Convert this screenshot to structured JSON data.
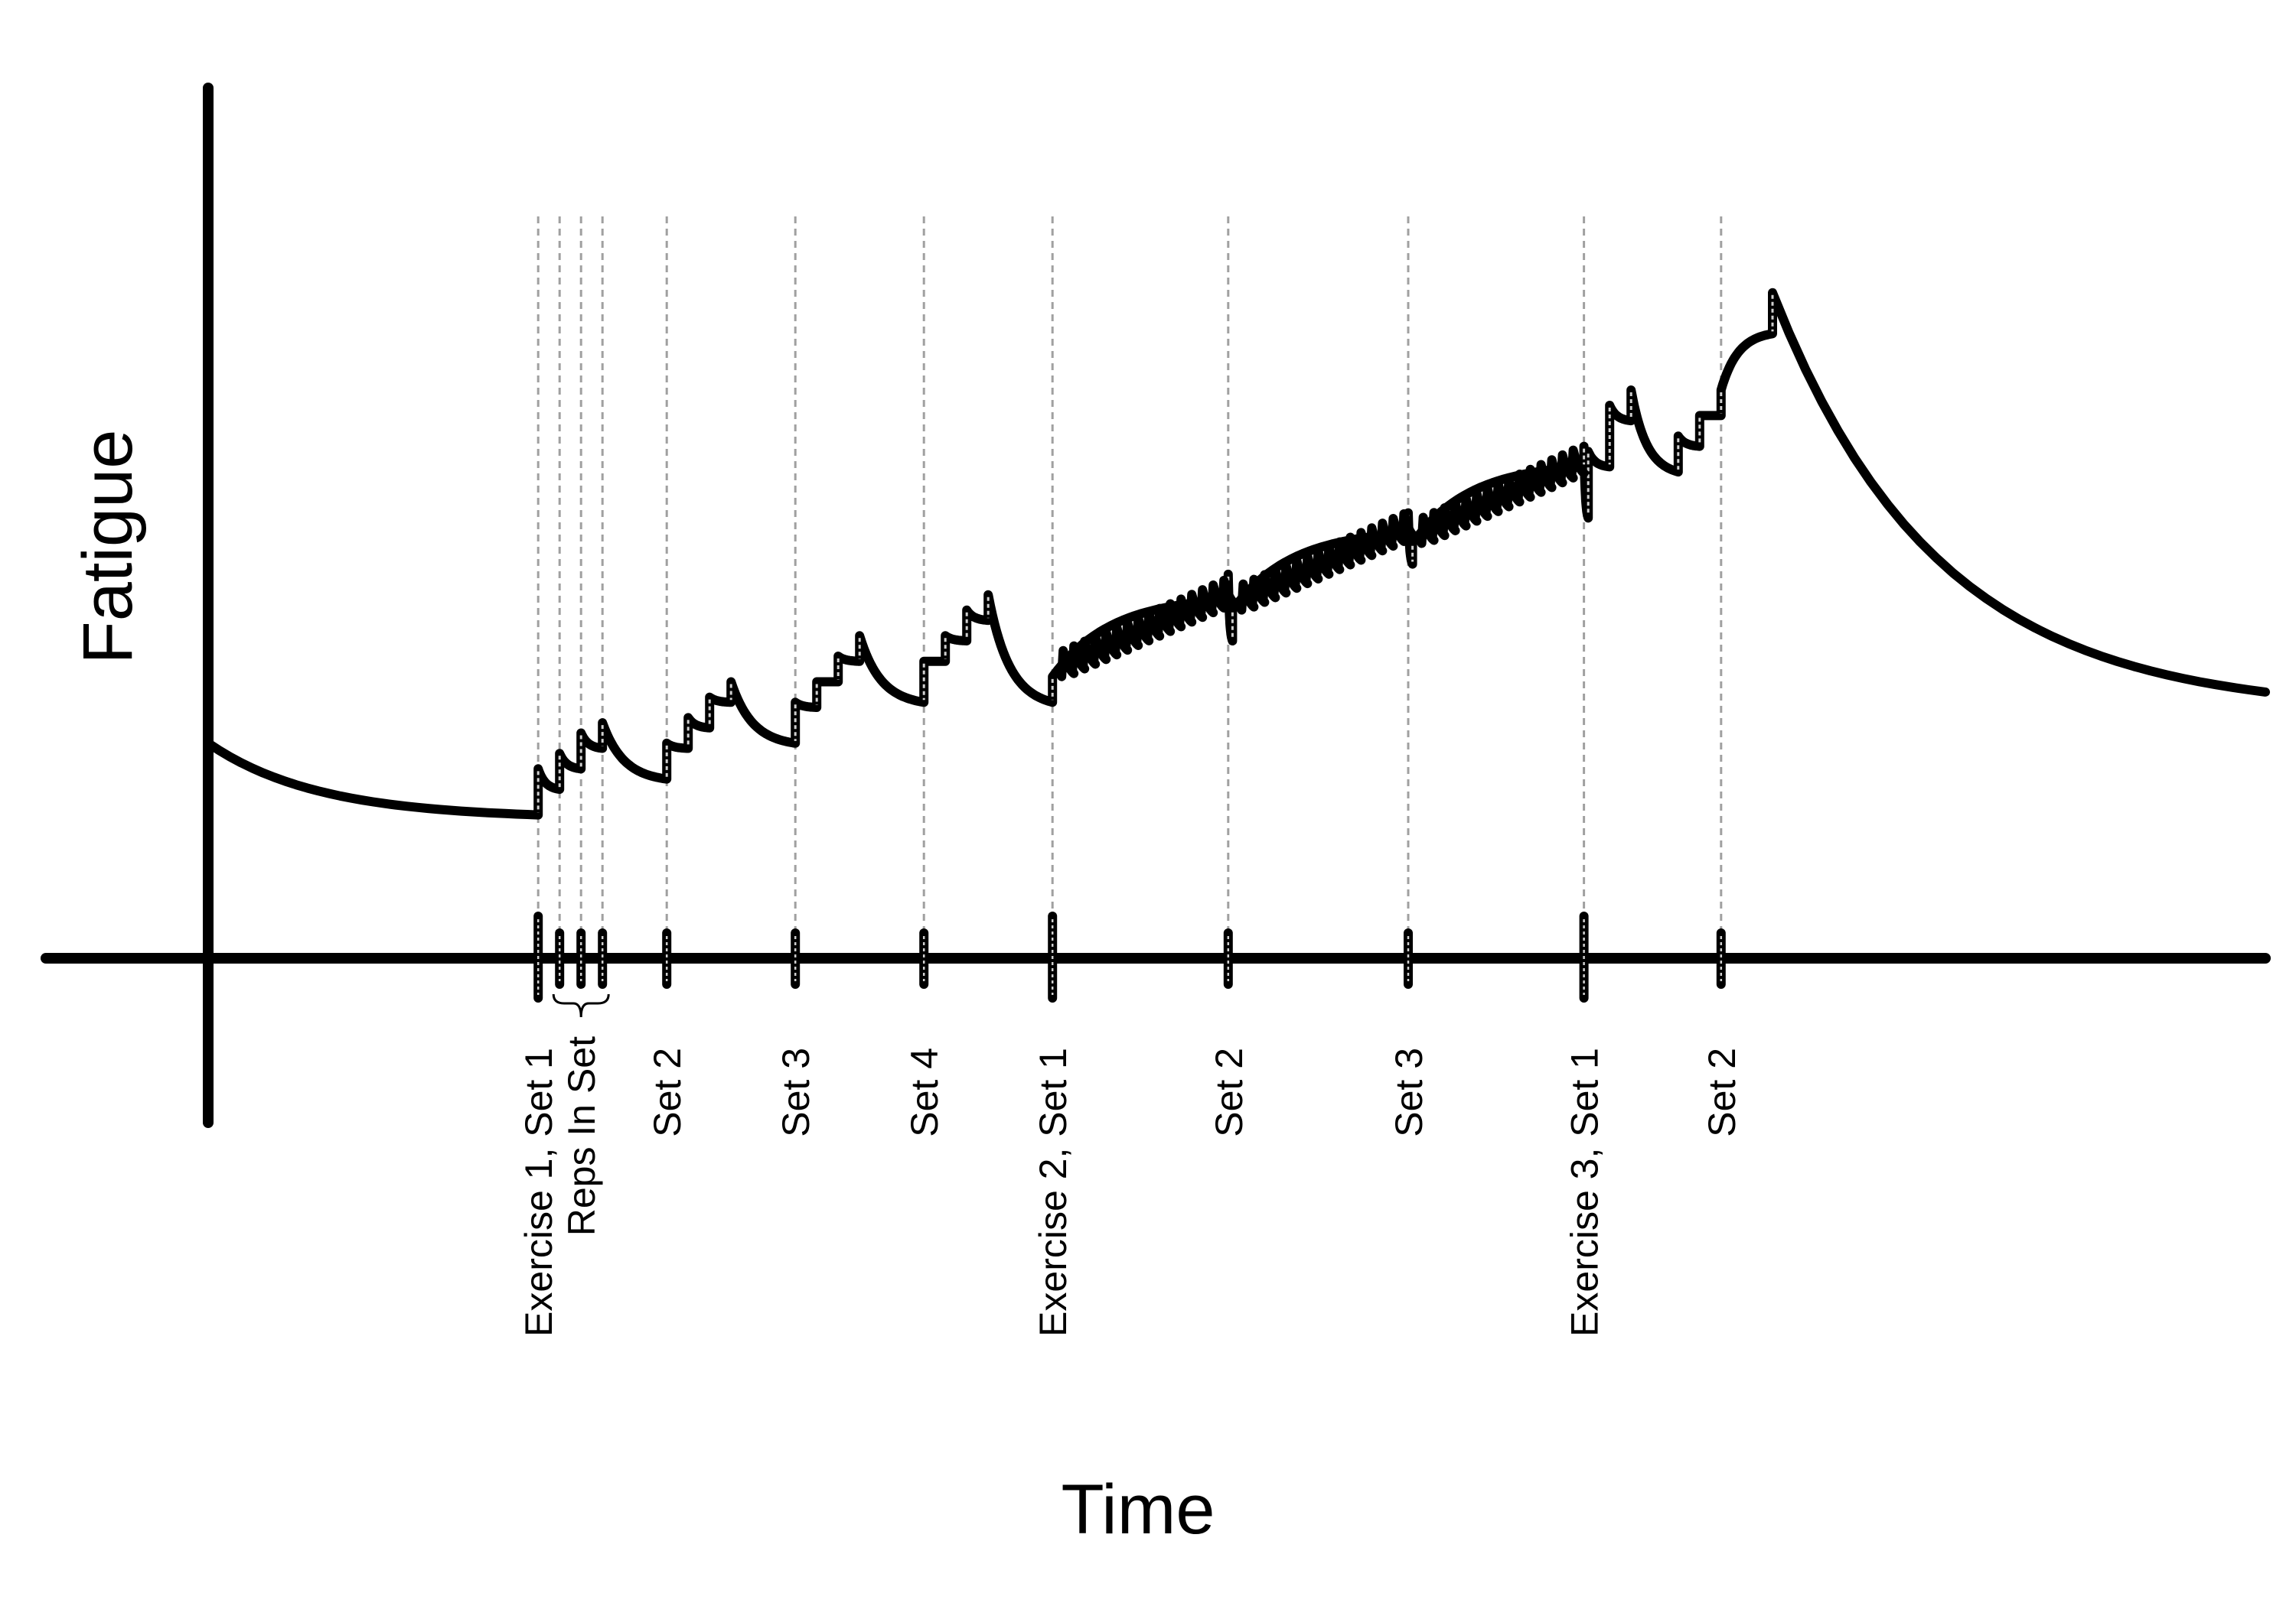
{
  "chart_data": {
    "type": "line",
    "title": "",
    "xlabel": "Time",
    "ylabel": "Fatigue",
    "grid": false,
    "legend": "none",
    "xlim": [
      -3,
      48
    ],
    "ylim": [
      -2.8,
      17
    ],
    "series": [
      {
        "name": "",
        "values": [
          [
            0,
            4.2
          ],
          [
            7.7,
            2.8
          ],
          [
            7.7,
            3.7
          ],
          [
            8.2,
            3.3
          ],
          [
            8.2,
            4.0
          ],
          [
            8.7,
            3.7
          ],
          [
            8.7,
            4.4
          ],
          [
            9.2,
            4.1
          ],
          [
            9.2,
            4.6
          ],
          [
            10.7,
            3.5
          ],
          [
            10.7,
            4.2
          ],
          [
            11.2,
            4.1
          ],
          [
            11.2,
            4.7
          ],
          [
            11.7,
            4.5
          ],
          [
            11.7,
            5.1
          ],
          [
            12.2,
            5.0
          ],
          [
            12.2,
            5.4
          ],
          [
            13.7,
            4.2
          ],
          [
            13.7,
            5.0
          ],
          [
            14.2,
            4.9
          ],
          [
            14.2,
            5.4
          ],
          [
            14.7,
            5.4
          ],
          [
            14.7,
            5.9
          ],
          [
            15.2,
            5.8
          ],
          [
            15.2,
            6.3
          ],
          [
            16.7,
            5.0
          ],
          [
            16.7,
            5.8
          ],
          [
            17.2,
            5.8
          ],
          [
            17.2,
            6.3
          ],
          [
            17.7,
            6.2
          ],
          [
            17.7,
            6.8
          ],
          [
            18.2,
            6.6
          ],
          [
            18.2,
            7.1
          ],
          [
            19.7,
            5.0
          ],
          [
            19.7,
            5.5
          ],
          [
            23.8,
            7.0
          ],
          [
            23.8,
            7.5
          ],
          [
            23.9,
            6.2
          ],
          [
            23.9,
            6.8
          ],
          [
            28.0,
            8.3
          ],
          [
            28.0,
            8.7
          ],
          [
            28.1,
            7.7
          ],
          [
            28.1,
            8.1
          ],
          [
            32.1,
            9.6
          ],
          [
            32.1,
            10.0
          ],
          [
            32.2,
            8.6
          ],
          [
            32.2,
            9.9
          ],
          [
            32.7,
            9.6
          ],
          [
            32.7,
            10.8
          ],
          [
            33.2,
            10.5
          ],
          [
            33.2,
            11.1
          ],
          [
            34.3,
            9.5
          ],
          [
            34.3,
            10.2
          ],
          [
            34.8,
            10.0
          ],
          [
            34.8,
            10.6
          ],
          [
            35.3,
            10.6
          ],
          [
            35.3,
            11.1
          ],
          [
            36.5,
            12.2
          ],
          [
            36.5,
            13.0
          ],
          [
            48,
            5.2
          ]
        ]
      }
    ],
    "markers": [
      {
        "x": 7.7,
        "label": "Exercise 1, Set 1",
        "kind": "exercise"
      },
      {
        "x": 8.2,
        "label": "",
        "kind": "rep"
      },
      {
        "x": 8.7,
        "label": "",
        "kind": "rep"
      },
      {
        "x": 9.2,
        "label": "",
        "kind": "rep"
      },
      {
        "x": 10.7,
        "label": "Set 2",
        "kind": "set"
      },
      {
        "x": 13.7,
        "label": "Set 3",
        "kind": "set"
      },
      {
        "x": 16.7,
        "label": "Set 4",
        "kind": "set"
      },
      {
        "x": 19.7,
        "label": "Exercise 2, Set 1",
        "kind": "exercise"
      },
      {
        "x": 23.8,
        "label": "Set 2",
        "kind": "set"
      },
      {
        "x": 28.0,
        "label": "Set 3",
        "kind": "set"
      },
      {
        "x": 32.1,
        "label": "Exercise 3, Set 1",
        "kind": "exercise"
      },
      {
        "x": 35.3,
        "label": "Set 2",
        "kind": "set"
      }
    ],
    "annotations": [
      {
        "label": "Reps In Set",
        "x_from": 8.2,
        "x_to": 9.2
      }
    ]
  }
}
